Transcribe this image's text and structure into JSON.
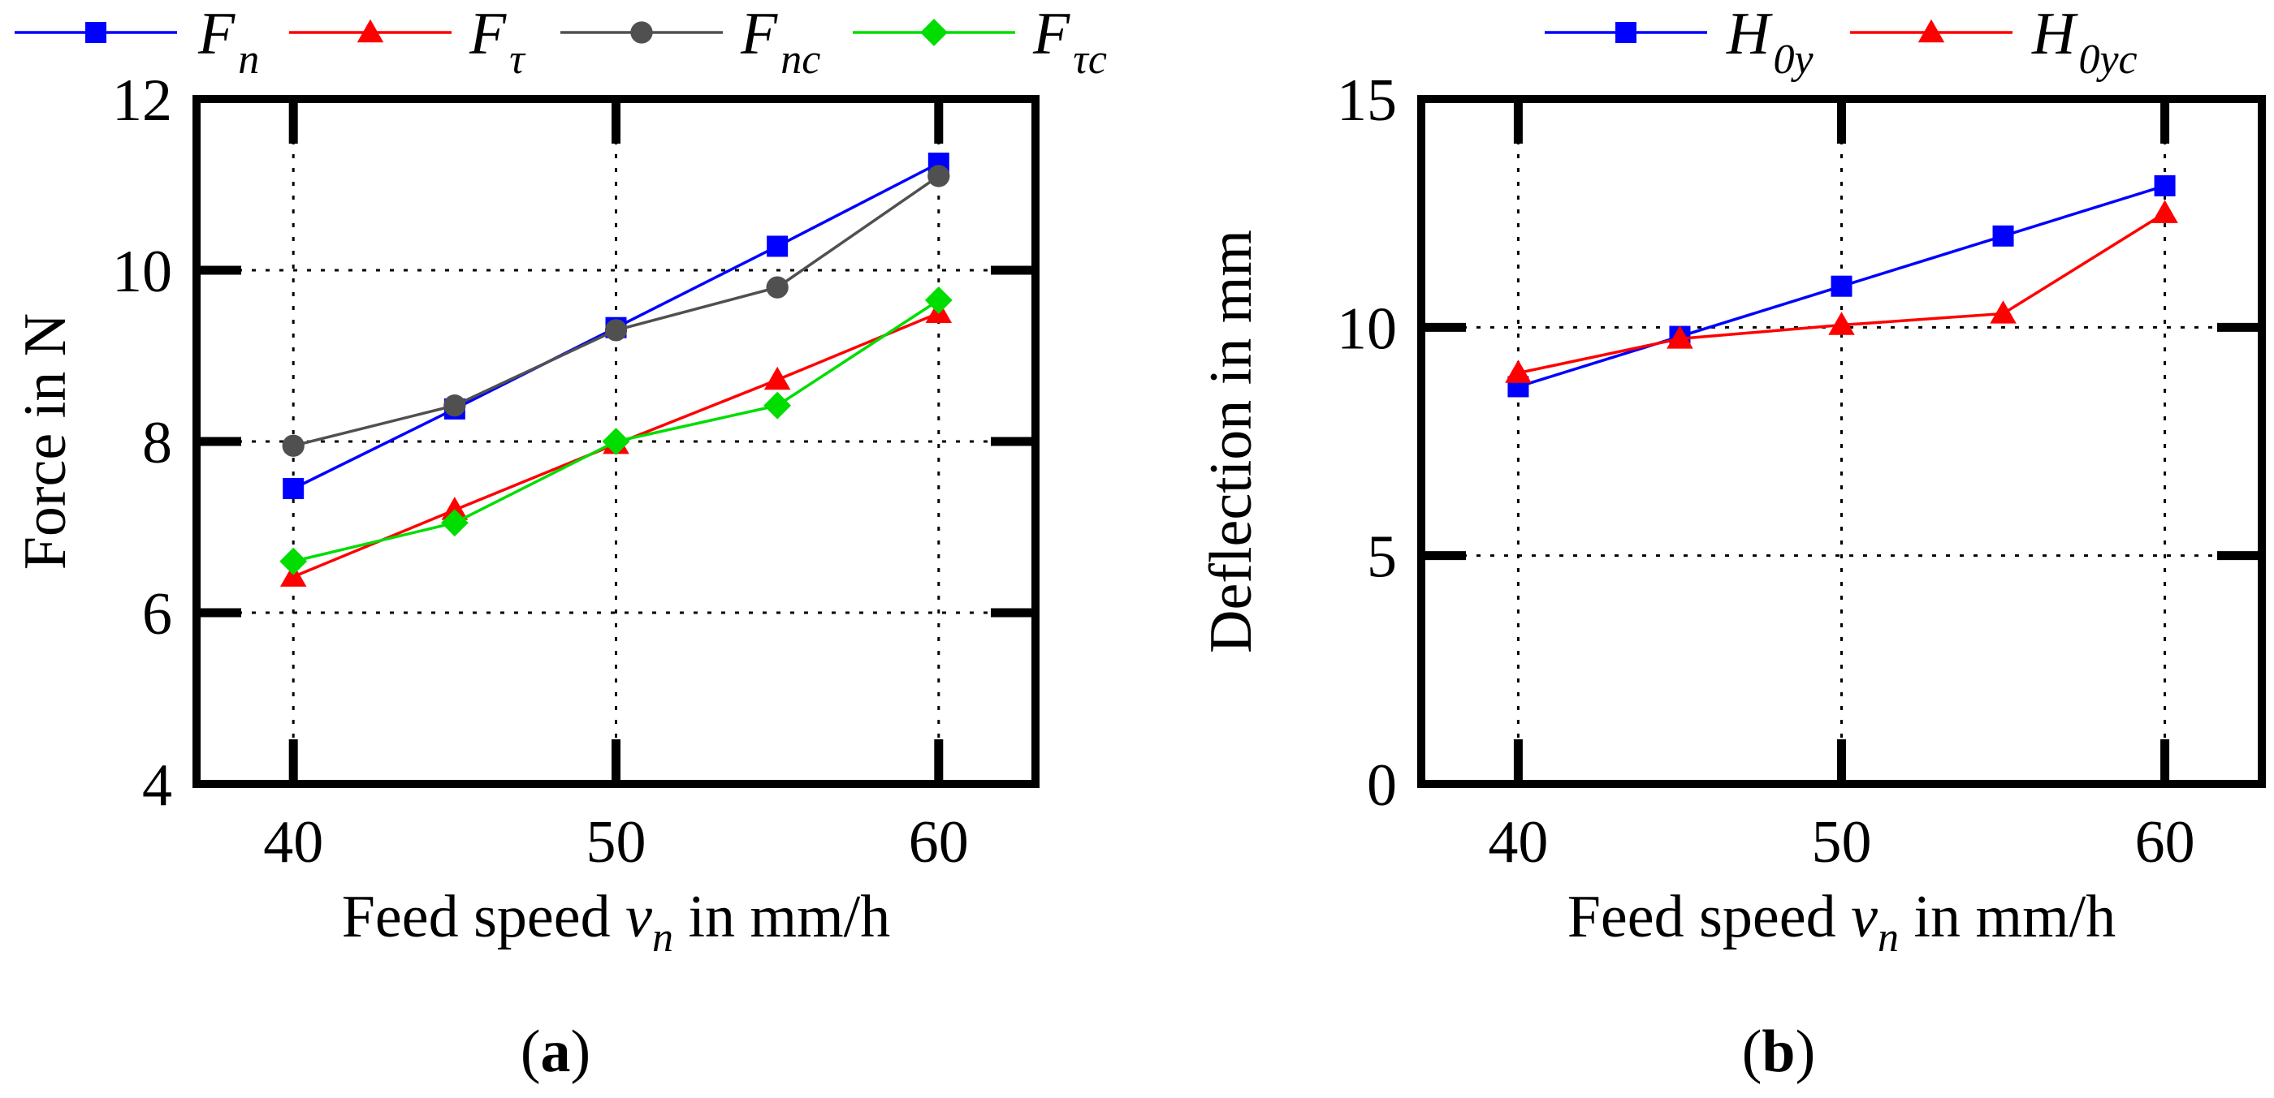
{
  "chart_data": [
    {
      "type": "line",
      "panel_label": "a",
      "xlabel_prefix": "Feed speed ",
      "xlabel_var": "v",
      "xlabel_sub": "n",
      "xlabel_suffix": " in mm/h",
      "ylabel": "Force in N",
      "xlim": [
        37,
        63
      ],
      "ylim": [
        4,
        12
      ],
      "xticks": [
        40,
        50,
        60
      ],
      "yticks": [
        4,
        6,
        8,
        10,
        12
      ],
      "grid": true,
      "legend_position": "top",
      "x": [
        40,
        45,
        50,
        55,
        60
      ],
      "series": [
        {
          "name": "F",
          "sub": "n",
          "color": "#0000ff",
          "marker": "square",
          "values": [
            7.45,
            8.38,
            9.33,
            10.28,
            11.25
          ]
        },
        {
          "name": "F",
          "sub": "τ",
          "color": "#ff0000",
          "marker": "triangle",
          "values": [
            6.42,
            7.2,
            7.97,
            8.72,
            9.5
          ]
        },
        {
          "name": "F",
          "sub": "nc",
          "color": "#505050",
          "marker": "circle",
          "values": [
            7.95,
            8.42,
            9.3,
            9.8,
            11.1
          ]
        },
        {
          "name": "F",
          "sub": "τc",
          "color": "#00dd00",
          "marker": "diamond",
          "values": [
            6.6,
            7.05,
            8.0,
            8.42,
            9.65
          ]
        }
      ]
    },
    {
      "type": "line",
      "panel_label": "b",
      "xlabel_prefix": "Feed speed ",
      "xlabel_var": "v",
      "xlabel_sub": "n",
      "xlabel_suffix": " in mm/h",
      "ylabel": "Deflection in mm",
      "xlim": [
        37,
        63
      ],
      "ylim": [
        0,
        15
      ],
      "xticks": [
        40,
        50,
        60
      ],
      "yticks": [
        0,
        5,
        10,
        15
      ],
      "grid": true,
      "legend_position": "top",
      "x": [
        40,
        45,
        50,
        55,
        60
      ],
      "series": [
        {
          "name": "H",
          "sub": "0y",
          "color": "#0000ff",
          "marker": "square",
          "values": [
            8.7,
            9.8,
            10.9,
            12.0,
            13.1
          ]
        },
        {
          "name": "H",
          "sub": "0yc",
          "color": "#ff0000",
          "marker": "triangle",
          "values": [
            9.0,
            9.75,
            10.05,
            10.3,
            12.5
          ]
        }
      ]
    }
  ]
}
